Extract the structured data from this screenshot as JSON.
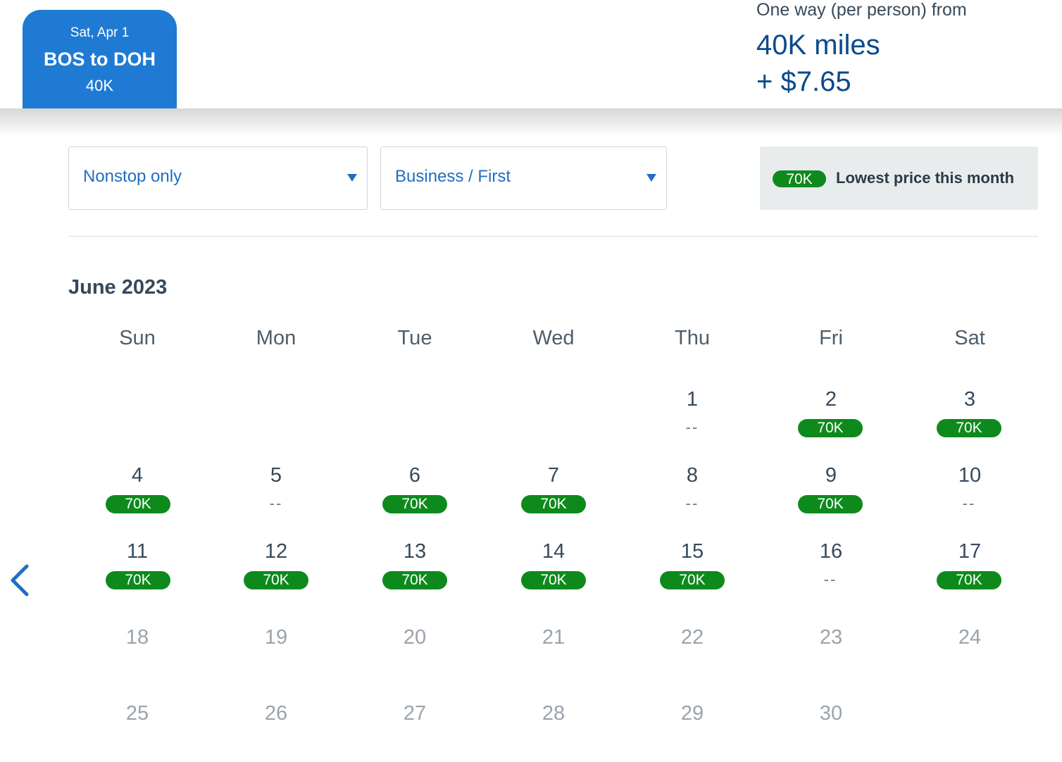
{
  "trip": {
    "date": "Sat, Apr 1",
    "route": "BOS to DOH",
    "price": "40K"
  },
  "fare": {
    "label": "One way (per person) from",
    "miles": "40K miles",
    "cash": "+ $7.65"
  },
  "filters": {
    "stops": "Nonstop only",
    "cabin": "Business / First"
  },
  "legend": {
    "badge": "70K",
    "text": "Lowest price this month"
  },
  "calendar": {
    "month": "June 2023",
    "weekdays": [
      "Sun",
      "Mon",
      "Tue",
      "Wed",
      "Thu",
      "Fri",
      "Sat"
    ],
    "days": {
      "d1": {
        "num": "1",
        "price": "--"
      },
      "d2": {
        "num": "2",
        "price": "70K"
      },
      "d3": {
        "num": "3",
        "price": "70K"
      },
      "d4": {
        "num": "4",
        "price": "70K"
      },
      "d5": {
        "num": "5",
        "price": "--"
      },
      "d6": {
        "num": "6",
        "price": "70K"
      },
      "d7": {
        "num": "7",
        "price": "70K"
      },
      "d8": {
        "num": "8",
        "price": "--"
      },
      "d9": {
        "num": "9",
        "price": "70K"
      },
      "d10": {
        "num": "10",
        "price": "--"
      },
      "d11": {
        "num": "11",
        "price": "70K"
      },
      "d12": {
        "num": "12",
        "price": "70K"
      },
      "d13": {
        "num": "13",
        "price": "70K"
      },
      "d14": {
        "num": "14",
        "price": "70K"
      },
      "d15": {
        "num": "15",
        "price": "70K"
      },
      "d16": {
        "num": "16",
        "price": "--"
      },
      "d17": {
        "num": "17",
        "price": "70K"
      },
      "d18": {
        "num": "18"
      },
      "d19": {
        "num": "19"
      },
      "d20": {
        "num": "20"
      },
      "d21": {
        "num": "21"
      },
      "d22": {
        "num": "22"
      },
      "d23": {
        "num": "23"
      },
      "d24": {
        "num": "24"
      },
      "d25": {
        "num": "25"
      },
      "d26": {
        "num": "26"
      },
      "d27": {
        "num": "27"
      },
      "d28": {
        "num": "28"
      },
      "d29": {
        "num": "29"
      },
      "d30": {
        "num": "30"
      }
    }
  },
  "colors": {
    "accent": "#1f7ad3",
    "price_green": "#0e8a1d",
    "fare_blue": "#0b4a8c"
  },
  "icons": {
    "prev": "chevron-left-icon",
    "caret": "caret-down-icon"
  }
}
